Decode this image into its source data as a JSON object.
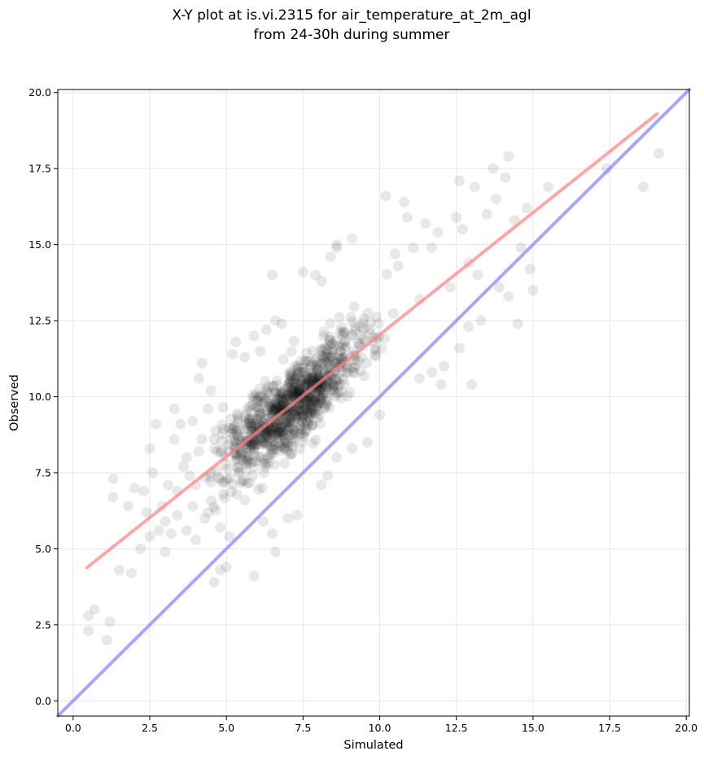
{
  "chart_data": {
    "type": "scatter",
    "title_lines": [
      "X-Y plot at is.vi.2315 for air_temperature_at_2m_agl",
      "from 24-30h during summer"
    ],
    "xlabel": "Simulated",
    "ylabel": "Observed",
    "xlim": [
      -0.5,
      20.1
    ],
    "ylim": [
      -0.5,
      20.1
    ],
    "xticks": [
      0.0,
      2.5,
      5.0,
      7.5,
      10.0,
      12.5,
      15.0,
      17.5,
      20.0
    ],
    "yticks": [
      0.0,
      2.5,
      5.0,
      7.5,
      10.0,
      12.5,
      15.0,
      17.5,
      20.0
    ],
    "xtick_labels": [
      "0.0",
      "2.5",
      "5.0",
      "7.5",
      "10.0",
      "12.5",
      "15.0",
      "17.5",
      "20.0"
    ],
    "ytick_labels": [
      "0.0",
      "2.5",
      "5.0",
      "7.5",
      "10.0",
      "12.5",
      "15.0",
      "17.5",
      "20.0"
    ],
    "grid": true,
    "point_color": "#000000",
    "point_opacity": 0.09,
    "points": [
      [
        0.5,
        2.3
      ],
      [
        0.5,
        2.8
      ],
      [
        0.7,
        3.0
      ],
      [
        1.1,
        2.0
      ],
      [
        1.2,
        2.6
      ],
      [
        1.5,
        4.3
      ],
      [
        1.8,
        6.4
      ],
      [
        1.9,
        4.2
      ],
      [
        1.3,
        6.7
      ],
      [
        1.3,
        7.3
      ],
      [
        2.0,
        7.0
      ],
      [
        2.2,
        5.0
      ],
      [
        2.5,
        5.4
      ],
      [
        2.5,
        8.3
      ],
      [
        2.7,
        9.1
      ],
      [
        3.0,
        4.9
      ],
      [
        3.0,
        5.9
      ],
      [
        3.4,
        6.1
      ],
      [
        3.3,
        9.6
      ],
      [
        3.5,
        9.1
      ],
      [
        3.7,
        8.0
      ],
      [
        3.8,
        7.4
      ],
      [
        4.1,
        10.6
      ],
      [
        4.2,
        11.1
      ],
      [
        4.5,
        10.2
      ],
      [
        4.6,
        8.6
      ],
      [
        4.6,
        3.9
      ],
      [
        4.8,
        4.3
      ],
      [
        5.0,
        4.4
      ],
      [
        5.1,
        5.4
      ],
      [
        5.2,
        11.4
      ],
      [
        5.3,
        11.8
      ],
      [
        5.6,
        11.3
      ],
      [
        5.9,
        10.0
      ],
      [
        5.9,
        12.0
      ],
      [
        6.1,
        11.5
      ],
      [
        6.3,
        12.2
      ],
      [
        6.5,
        14.0
      ],
      [
        6.6,
        12.5
      ],
      [
        6.8,
        12.4
      ],
      [
        6.2,
        5.9
      ],
      [
        5.6,
        6.6
      ],
      [
        5.9,
        4.1
      ],
      [
        6.5,
        5.5
      ],
      [
        6.6,
        4.9
      ],
      [
        7.0,
        6.0
      ],
      [
        7.3,
        6.1
      ],
      [
        7.0,
        10.0
      ],
      [
        7.5,
        14.1
      ],
      [
        7.9,
        14.0
      ],
      [
        8.1,
        13.8
      ],
      [
        8.4,
        14.6
      ],
      [
        8.6,
        14.9
      ],
      [
        8.6,
        15.0
      ],
      [
        9.1,
        15.2
      ],
      [
        9.2,
        12.3
      ],
      [
        8.1,
        7.1
      ],
      [
        8.3,
        7.4
      ],
      [
        8.6,
        8.0
      ],
      [
        9.1,
        8.3
      ],
      [
        9.6,
        8.5
      ],
      [
        10.0,
        9.4
      ],
      [
        10.2,
        16.6
      ],
      [
        10.5,
        14.7
      ],
      [
        10.6,
        14.3
      ],
      [
        10.8,
        16.4
      ],
      [
        10.9,
        15.9
      ],
      [
        11.1,
        14.9
      ],
      [
        11.3,
        13.2
      ],
      [
        11.5,
        15.7
      ],
      [
        11.7,
        14.9
      ],
      [
        11.9,
        15.4
      ],
      [
        11.3,
        10.6
      ],
      [
        11.7,
        10.8
      ],
      [
        12.0,
        10.4
      ],
      [
        12.1,
        11.0
      ],
      [
        12.3,
        13.6
      ],
      [
        12.5,
        15.9
      ],
      [
        12.6,
        17.1
      ],
      [
        12.7,
        15.5
      ],
      [
        12.9,
        14.4
      ],
      [
        12.9,
        12.3
      ],
      [
        13.0,
        10.4
      ],
      [
        13.2,
        14.0
      ],
      [
        13.5,
        16.0
      ],
      [
        13.7,
        17.5
      ],
      [
        13.8,
        16.5
      ],
      [
        14.1,
        17.2
      ],
      [
        14.2,
        17.9
      ],
      [
        14.4,
        15.8
      ],
      [
        14.5,
        12.4
      ],
      [
        14.6,
        14.9
      ],
      [
        14.8,
        16.2
      ],
      [
        14.9,
        14.2
      ],
      [
        15.0,
        13.5
      ],
      [
        15.5,
        16.9
      ],
      [
        17.4,
        17.5
      ],
      [
        18.6,
        16.9
      ],
      [
        19.1,
        18.0
      ],
      [
        13.1,
        16.9
      ],
      [
        13.3,
        12.5
      ],
      [
        12.6,
        11.6
      ],
      [
        13.9,
        13.6
      ],
      [
        14.2,
        13.3
      ],
      [
        2.3,
        6.9
      ],
      [
        2.4,
        6.2
      ],
      [
        2.6,
        7.5
      ],
      [
        2.8,
        5.6
      ],
      [
        2.9,
        6.4
      ],
      [
        3.1,
        7.1
      ],
      [
        3.2,
        5.5
      ],
      [
        3.4,
        6.9
      ],
      [
        3.6,
        7.7
      ],
      [
        3.9,
        6.4
      ],
      [
        4.0,
        7.1
      ],
      [
        4.2,
        8.6
      ],
      [
        4.4,
        6.2
      ],
      [
        4.5,
        7.5
      ],
      [
        4.7,
        8.2
      ],
      [
        4.9,
        6.8
      ],
      [
        3.7,
        5.6
      ],
      [
        4.0,
        5.3
      ],
      [
        4.3,
        6.0
      ],
      [
        4.8,
        5.7
      ],
      [
        3.3,
        8.6
      ],
      [
        3.9,
        9.2
      ],
      [
        4.1,
        8.2
      ],
      [
        4.4,
        9.6
      ]
    ],
    "fit_line": {
      "x": [
        0.45,
        19.05
      ],
      "y": [
        4.38,
        19.3
      ],
      "color": "#ff8080"
    },
    "identity_line": {
      "x": [
        -0.5,
        20.1
      ],
      "y": [
        -0.5,
        20.1
      ],
      "color": "#8080ff"
    }
  }
}
